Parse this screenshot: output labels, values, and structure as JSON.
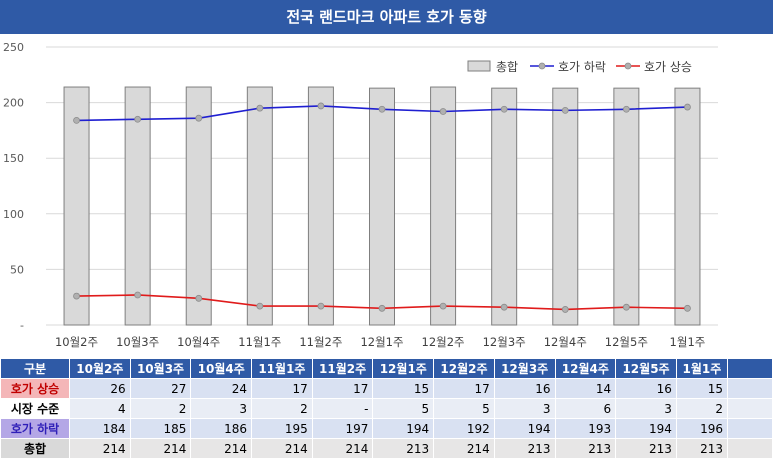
{
  "title": "전국 랜드마크 아파트 호가 동향",
  "chart_data": {
    "type": "bar",
    "categories": [
      "10월2주",
      "10월3주",
      "10월4주",
      "11월1주",
      "11월2주",
      "12월1주",
      "12월2주",
      "12월3주",
      "12월4주",
      "12월5주",
      "1월1주"
    ],
    "y_ticks": [
      "250",
      "200",
      "150",
      "100",
      "50",
      "-"
    ],
    "ylim": [
      0,
      250
    ],
    "series": [
      {
        "name": "총합",
        "type": "bar",
        "color": "#d9d9d9",
        "values": [
          214,
          214,
          214,
          214,
          214,
          213,
          214,
          213,
          213,
          213,
          213
        ]
      },
      {
        "name": "호가 하락",
        "type": "line",
        "color": "#1f1fd1",
        "values": [
          184,
          185,
          186,
          195,
          197,
          194,
          192,
          194,
          193,
          194,
          196
        ]
      },
      {
        "name": "호가 상승",
        "type": "line",
        "color": "#e01b1b",
        "values": [
          26,
          27,
          24,
          17,
          17,
          15,
          17,
          16,
          14,
          16,
          15
        ]
      }
    ],
    "legend_position": "top-right",
    "grid": true
  },
  "table": {
    "header_label": "구분",
    "columns": [
      "10월2주",
      "10월3주",
      "10월4주",
      "11월1주",
      "11월2주",
      "12월1주",
      "12월2주",
      "12월3주",
      "12월4주",
      "12월5주",
      "1월1주"
    ],
    "rows": [
      {
        "label": "호가 상승",
        "values": [
          "26",
          "27",
          "24",
          "17",
          "17",
          "15",
          "17",
          "16",
          "14",
          "16",
          "15"
        ]
      },
      {
        "label": "시장 수준",
        "values": [
          "4",
          "2",
          "3",
          "2",
          "-",
          "5",
          "5",
          "3",
          "6",
          "3",
          "2"
        ]
      },
      {
        "label": "호가 하락",
        "values": [
          "184",
          "185",
          "186",
          "195",
          "197",
          "194",
          "192",
          "194",
          "193",
          "194",
          "196"
        ]
      },
      {
        "label": "총합",
        "values": [
          "214",
          "214",
          "214",
          "214",
          "214",
          "213",
          "214",
          "213",
          "213",
          "213",
          "213"
        ]
      }
    ]
  }
}
